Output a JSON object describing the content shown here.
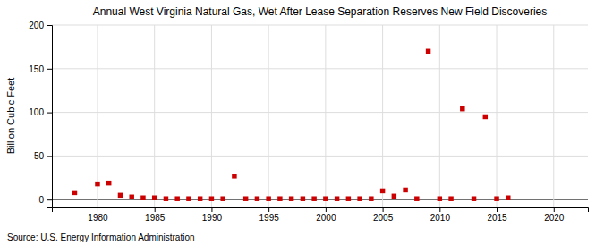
{
  "chart_data": {
    "type": "scatter",
    "title": "Annual West Virginia Natural Gas, Wet After Lease Separation Reserves New Field Discoveries",
    "ylabel": "Billion Cubic Feet",
    "source": "Source: U.S. Energy Information Administration",
    "color": "#cc0000",
    "marker": "square",
    "grid": true,
    "xlim": [
      1976,
      2023
    ],
    "ylim": [
      -8,
      200
    ],
    "xticks": [
      1980,
      1985,
      1990,
      1995,
      2000,
      2005,
      2010,
      2015,
      2020
    ],
    "yticks": [
      0,
      50,
      100,
      150,
      200
    ],
    "x": [
      1978,
      1980,
      1981,
      1982,
      1983,
      1984,
      1985,
      1986,
      1987,
      1988,
      1989,
      1990,
      1991,
      1992,
      1993,
      1994,
      1995,
      1996,
      1997,
      1998,
      1999,
      2000,
      2001,
      2002,
      2003,
      2004,
      2005,
      2006,
      2007,
      2008,
      2009,
      2010,
      2011,
      2012,
      2013,
      2014,
      2015,
      2016
    ],
    "values": [
      8,
      18,
      19,
      5,
      3,
      2,
      2,
      1,
      1,
      1,
      1,
      1,
      1,
      27,
      1,
      1,
      1,
      1,
      1,
      1,
      1,
      1,
      1,
      1,
      1,
      1,
      10,
      4,
      11,
      1,
      170,
      1,
      1,
      104,
      1,
      95,
      1,
      2
    ]
  }
}
